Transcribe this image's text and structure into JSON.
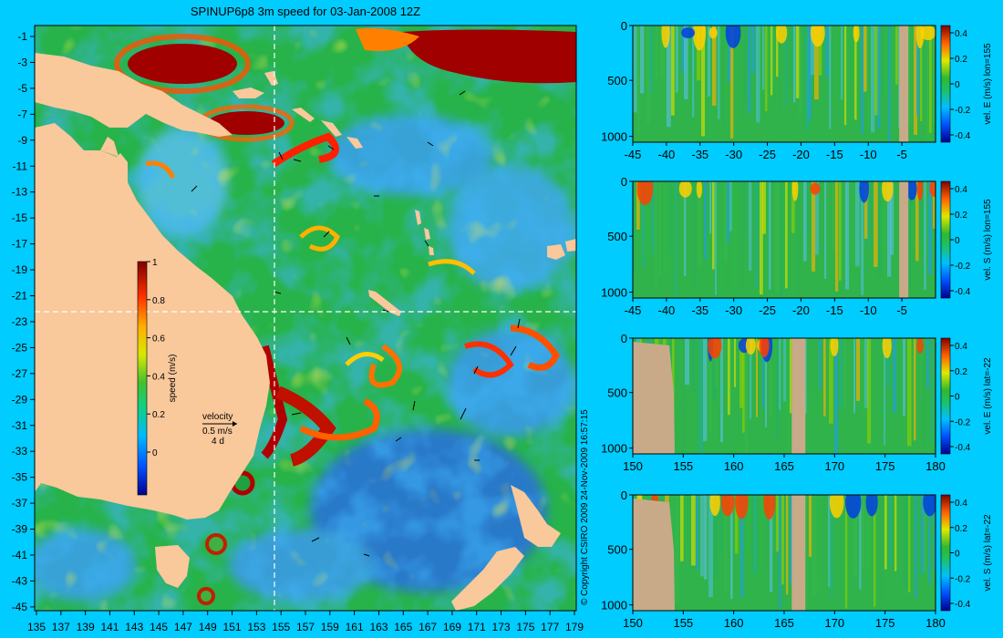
{
  "title": "SPINUP6p8 3m speed for 03-Jan-2008 12Z",
  "copyright": "© Copyright CSIRO 2009   24-Nov-2009 16:57:15",
  "colors": {
    "background": "#00ccff",
    "land": "#f9c89b",
    "section_land": "#c8aa88",
    "ocean_base": "#27b34a"
  },
  "map": {
    "x_ticks": [
      "135",
      "137",
      "139",
      "141",
      "143",
      "145",
      "147",
      "149",
      "151",
      "153",
      "155",
      "157",
      "159",
      "161",
      "163",
      "165",
      "167",
      "169",
      "171",
      "173",
      "175",
      "177",
      "179"
    ],
    "y_ticks": [
      "-1",
      "-3",
      "-5",
      "-7",
      "-9",
      "-11",
      "-13",
      "-15",
      "-17",
      "-19",
      "-21",
      "-23",
      "-25",
      "-27",
      "-29",
      "-31",
      "-33",
      "-35",
      "-37",
      "-39",
      "-41",
      "-43",
      "-45"
    ],
    "colorbar": {
      "label": "speed (m/s)",
      "ticks": [
        "1",
        "0.8",
        "0.6",
        "0.4",
        "0.2",
        "0"
      ]
    },
    "velocity_key": {
      "title": "velocity",
      "line1": "0.5 m/s",
      "line2": "4 d"
    },
    "crosshair": {
      "lon": 155,
      "lat": -22
    }
  },
  "sections": [
    {
      "label": "vel. E (m/s) lon=155",
      "x_ticks": [
        "-45",
        "-40",
        "-35",
        "-30",
        "-25",
        "-20",
        "-15",
        "-10",
        "-5"
      ],
      "y_ticks": [
        "0",
        "500",
        "1000"
      ],
      "cbar_ticks": [
        "0.4",
        "0.2",
        "0",
        "-0.2",
        "-0.4"
      ]
    },
    {
      "label": "vel. S (m/s) lon=155",
      "x_ticks": [
        "-45",
        "-40",
        "-35",
        "-30",
        "-25",
        "-20",
        "-15",
        "-10",
        "-5"
      ],
      "y_ticks": [
        "0",
        "500",
        "1000"
      ],
      "cbar_ticks": [
        "0.4",
        "0.2",
        "0",
        "-0.2",
        "-0.4"
      ]
    },
    {
      "label": "vel. E (m/s) lat=-22",
      "x_ticks": [
        "150",
        "155",
        "160",
        "165",
        "170",
        "175",
        "180"
      ],
      "y_ticks": [
        "0",
        "500",
        "1000"
      ],
      "cbar_ticks": [
        "0.4",
        "0.2",
        "0",
        "-0.2",
        "-0.4"
      ]
    },
    {
      "label": "vel. S (m/s) lat=-22",
      "x_ticks": [
        "150",
        "155",
        "160",
        "165",
        "170",
        "175",
        "180"
      ],
      "y_ticks": [
        "0",
        "500",
        "1000"
      ],
      "cbar_ticks": [
        "0.4",
        "0.2",
        "0",
        "-0.2",
        "-0.4"
      ]
    }
  ]
}
